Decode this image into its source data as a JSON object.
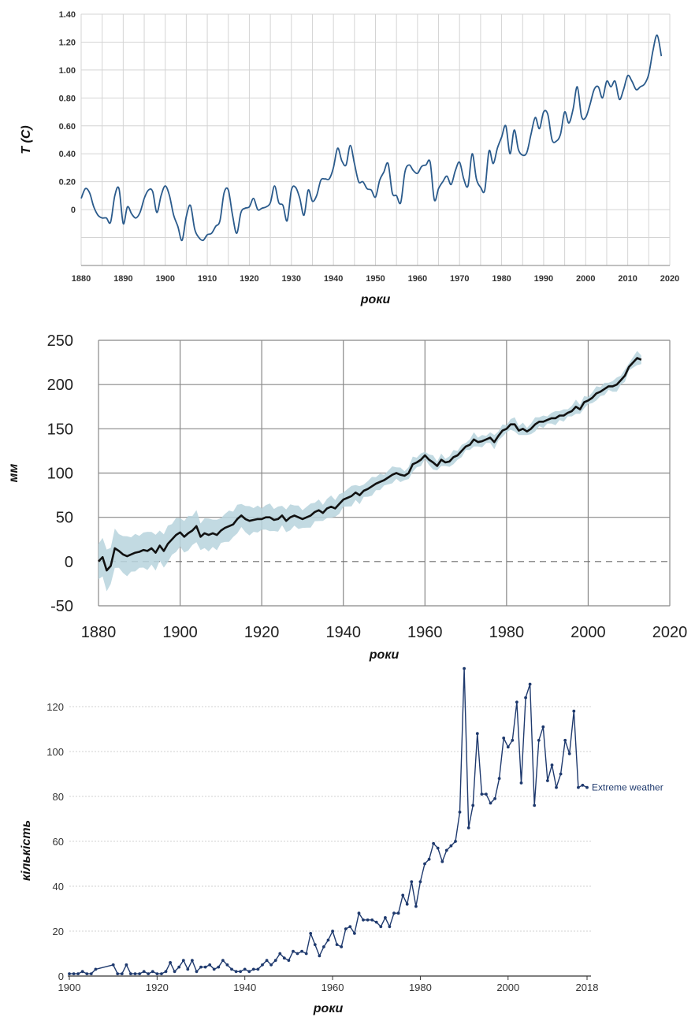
{
  "chart_data": [
    {
      "type": "line",
      "xlabel": "роки",
      "ylabel": "T (C)",
      "xlim": [
        1880,
        2020
      ],
      "ylim": [
        -0.4,
        1.4
      ],
      "x_ticks": [
        "1880",
        "1890",
        "1900",
        "1910",
        "1920",
        "1930",
        "1940",
        "1950",
        "1960",
        "1970",
        "1980",
        "1990",
        "2000",
        "2010",
        "2020"
      ],
      "y_ticks": [
        "1.40",
        "1.20",
        "1.00",
        "0.80",
        "0.60",
        "0.40",
        "0.20",
        "0"
      ],
      "grid": true,
      "line_color": "#2b5b8c",
      "series": [
        {
          "x": [
            1880,
            1881,
            1882,
            1883,
            1884,
            1885,
            1886,
            1887,
            1888,
            1889,
            1890,
            1891,
            1892,
            1893,
            1894,
            1895,
            1896,
            1897,
            1898,
            1899,
            1900,
            1901,
            1902,
            1903,
            1904,
            1905,
            1906,
            1907,
            1908,
            1909,
            1910,
            1911,
            1912,
            1913,
            1914,
            1915,
            1916,
            1917,
            1918,
            1919,
            1920,
            1921,
            1922,
            1923,
            1924,
            1925,
            1926,
            1927,
            1928,
            1929,
            1930,
            1931,
            1932,
            1933,
            1934,
            1935,
            1936,
            1937,
            1938,
            1939,
            1940,
            1941,
            1942,
            1943,
            1944,
            1945,
            1946,
            1947,
            1948,
            1949,
            1950,
            1951,
            1952,
            1953,
            1954,
            1955,
            1956,
            1957,
            1958,
            1959,
            1960,
            1961,
            1962,
            1963,
            1964,
            1965,
            1966,
            1967,
            1968,
            1969,
            1970,
            1971,
            1972,
            1973,
            1974,
            1975,
            1976,
            1977,
            1978,
            1979,
            1980,
            1981,
            1982,
            1983,
            1984,
            1985,
            1986,
            1987,
            1988,
            1989,
            1990,
            1991,
            1992,
            1993,
            1994,
            1995,
            1996,
            1997,
            1998,
            1999,
            2000,
            2001,
            2002,
            2003,
            2004,
            2005,
            2006,
            2007,
            2008,
            2009,
            2010,
            2011,
            2012,
            2013,
            2014,
            2015,
            2016,
            2017,
            2018
          ],
          "y": [
            0.08,
            0.15,
            0.12,
            0.02,
            -0.04,
            -0.06,
            -0.06,
            -0.09,
            0.1,
            0.15,
            -0.1,
            0.02,
            -0.03,
            -0.06,
            -0.02,
            0.08,
            0.14,
            0.13,
            -0.02,
            0.1,
            0.17,
            0.1,
            -0.04,
            -0.12,
            -0.22,
            -0.05,
            0.03,
            -0.14,
            -0.2,
            -0.22,
            -0.18,
            -0.17,
            -0.12,
            -0.08,
            0.12,
            0.14,
            -0.04,
            -0.17,
            -0.02,
            0.01,
            0.02,
            0.08,
            0.0,
            0.01,
            0.02,
            0.05,
            0.17,
            0.05,
            0.03,
            -0.08,
            0.14,
            0.16,
            0.08,
            -0.04,
            0.14,
            0.06,
            0.1,
            0.21,
            0.22,
            0.22,
            0.3,
            0.44,
            0.35,
            0.32,
            0.46,
            0.33,
            0.2,
            0.2,
            0.15,
            0.14,
            0.09,
            0.21,
            0.27,
            0.33,
            0.12,
            0.1,
            0.05,
            0.27,
            0.32,
            0.28,
            0.26,
            0.31,
            0.32,
            0.34,
            0.07,
            0.15,
            0.2,
            0.24,
            0.18,
            0.28,
            0.34,
            0.22,
            0.17,
            0.4,
            0.22,
            0.16,
            0.14,
            0.42,
            0.33,
            0.44,
            0.52,
            0.6,
            0.4,
            0.57,
            0.43,
            0.39,
            0.41,
            0.54,
            0.66,
            0.58,
            0.7,
            0.68,
            0.5,
            0.49,
            0.54,
            0.7,
            0.62,
            0.72,
            0.88,
            0.67,
            0.66,
            0.75,
            0.86,
            0.88,
            0.8,
            0.92,
            0.88,
            0.92,
            0.79,
            0.86,
            0.96,
            0.92,
            0.86,
            0.88,
            0.9,
            0.97,
            1.14,
            1.25,
            1.1
          ]
        }
      ]
    },
    {
      "type": "line",
      "xlabel": "роки",
      "ylabel": "мм",
      "xlim": [
        1880,
        2020
      ],
      "ylim": [
        -50,
        250
      ],
      "x_ticks": [
        "1880",
        "1900",
        "1920",
        "1940",
        "1960",
        "1980",
        "2000",
        "2020"
      ],
      "y_ticks": [
        "250",
        "200",
        "150",
        "100",
        "50",
        "0",
        "-50"
      ],
      "grid": true,
      "reference_line": 0,
      "line_color": "#111111",
      "band_color": "#b7d3dd",
      "series": [
        {
          "x": [
            1880,
            1881,
            1882,
            1883,
            1884,
            1885,
            1886,
            1887,
            1888,
            1889,
            1890,
            1891,
            1892,
            1893,
            1894,
            1895,
            1896,
            1897,
            1898,
            1899,
            1900,
            1901,
            1902,
            1903,
            1904,
            1905,
            1906,
            1907,
            1908,
            1909,
            1910,
            1911,
            1912,
            1913,
            1914,
            1915,
            1916,
            1917,
            1918,
            1919,
            1920,
            1921,
            1922,
            1923,
            1924,
            1925,
            1926,
            1927,
            1928,
            1929,
            1930,
            1931,
            1932,
            1933,
            1934,
            1935,
            1936,
            1937,
            1938,
            1939,
            1940,
            1941,
            1942,
            1943,
            1944,
            1945,
            1946,
            1947,
            1948,
            1949,
            1950,
            1951,
            1952,
            1953,
            1954,
            1955,
            1956,
            1957,
            1958,
            1959,
            1960,
            1961,
            1962,
            1963,
            1964,
            1965,
            1966,
            1967,
            1968,
            1969,
            1970,
            1971,
            1972,
            1973,
            1974,
            1975,
            1976,
            1977,
            1978,
            1979,
            1980,
            1981,
            1982,
            1983,
            1984,
            1985,
            1986,
            1987,
            1988,
            1989,
            1990,
            1991,
            1992,
            1993,
            1994,
            1995,
            1996,
            1997,
            1998,
            1999,
            2000,
            2001,
            2002,
            2003,
            2004,
            2005,
            2006,
            2007,
            2008,
            2009,
            2010,
            2011,
            2012,
            2013
          ],
          "y": [
            0,
            5,
            -10,
            -5,
            15,
            12,
            8,
            6,
            8,
            10,
            11,
            13,
            12,
            15,
            10,
            18,
            12,
            20,
            25,
            30,
            33,
            28,
            32,
            35,
            40,
            28,
            32,
            30,
            32,
            30,
            35,
            38,
            40,
            42,
            48,
            52,
            48,
            46,
            47,
            48,
            48,
            50,
            50,
            47,
            48,
            52,
            46,
            50,
            52,
            50,
            48,
            50,
            52,
            56,
            58,
            55,
            60,
            62,
            60,
            65,
            70,
            72,
            74,
            78,
            75,
            80,
            82,
            85,
            88,
            90,
            92,
            95,
            98,
            100,
            98,
            97,
            100,
            110,
            112,
            115,
            120,
            115,
            112,
            108,
            115,
            112,
            113,
            118,
            120,
            125,
            130,
            132,
            138,
            135,
            136,
            138,
            140,
            135,
            142,
            148,
            150,
            155,
            155,
            148,
            150,
            147,
            150,
            155,
            158,
            158,
            160,
            162,
            162,
            165,
            165,
            168,
            170,
            175,
            172,
            180,
            182,
            185,
            190,
            192,
            195,
            198,
            198,
            200,
            205,
            210,
            220,
            225,
            230,
            228
          ]
        }
      ]
    },
    {
      "type": "line",
      "xlabel": "роки",
      "ylabel": "кількість",
      "xlim": [
        1900,
        2018
      ],
      "ylim": [
        0,
        140
      ],
      "x_ticks": [
        "1900",
        "1920",
        "1940",
        "1960",
        "1980",
        "2000",
        "2018"
      ],
      "y_ticks": [
        "120",
        "100",
        "80",
        "60",
        "40",
        "20",
        "0"
      ],
      "grid": true,
      "line_color": "#1f3a6e",
      "series": [
        {
          "name": "Extreme weather",
          "x": [
            1900,
            1901,
            1902,
            1903,
            1904,
            1905,
            1906,
            1910,
            1911,
            1912,
            1913,
            1914,
            1915,
            1916,
            1917,
            1918,
            1919,
            1920,
            1921,
            1922,
            1923,
            1924,
            1925,
            1926,
            1927,
            1928,
            1929,
            1930,
            1931,
            1932,
            1933,
            1934,
            1935,
            1936,
            1937,
            1938,
            1939,
            1940,
            1941,
            1942,
            1943,
            1944,
            1945,
            1946,
            1947,
            1948,
            1949,
            1950,
            1951,
            1952,
            1953,
            1954,
            1955,
            1956,
            1957,
            1958,
            1959,
            1960,
            1961,
            1962,
            1963,
            1964,
            1965,
            1966,
            1967,
            1968,
            1969,
            1970,
            1971,
            1972,
            1973,
            1974,
            1975,
            1976,
            1977,
            1978,
            1979,
            1980,
            1981,
            1982,
            1983,
            1984,
            1985,
            1986,
            1987,
            1988,
            1989,
            1990,
            1991,
            1992,
            1993,
            1994,
            1995,
            1996,
            1997,
            1998,
            1999,
            2000,
            2001,
            2002,
            2003,
            2004,
            2005,
            2006,
            2007,
            2008,
            2009,
            2010,
            2011,
            2012,
            2013,
            2014,
            2015,
            2016,
            2017,
            2018
          ],
          "y": [
            1,
            1,
            1,
            2,
            1,
            1,
            3,
            5,
            1,
            1,
            5,
            1,
            1,
            1,
            2,
            1,
            2,
            1,
            1,
            2,
            6,
            2,
            4,
            7,
            3,
            7,
            2,
            4,
            4,
            5,
            3,
            4,
            7,
            5,
            3,
            2,
            2,
            3,
            2,
            3,
            3,
            5,
            7,
            5,
            7,
            10,
            8,
            7,
            11,
            10,
            11,
            10,
            19,
            14,
            9,
            13,
            16,
            20,
            14,
            13,
            21,
            22,
            19,
            28,
            25,
            25,
            25,
            24,
            22,
            26,
            22,
            28,
            28,
            36,
            32,
            42,
            31,
            42,
            50,
            52,
            59,
            57,
            51,
            56,
            58,
            60,
            73,
            137,
            66,
            76,
            108,
            81,
            81,
            77,
            79,
            88,
            106,
            102,
            105,
            122,
            86,
            124,
            130,
            76,
            105,
            111,
            87,
            94,
            84,
            90,
            105,
            99,
            118,
            84,
            85,
            84
          ]
        }
      ]
    }
  ]
}
